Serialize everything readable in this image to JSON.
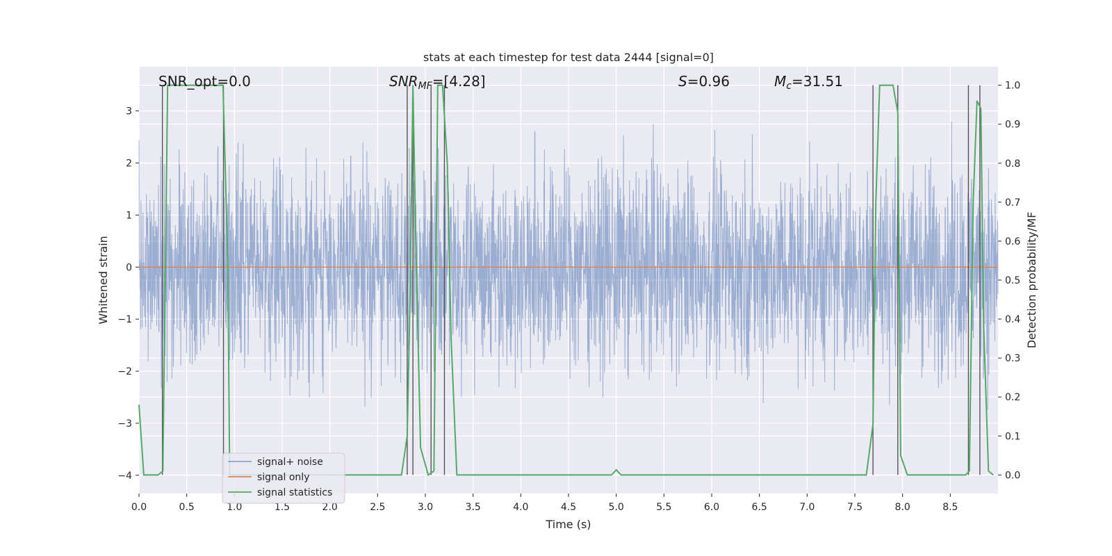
{
  "chart_data": {
    "type": "line",
    "title": "stats at each timestep for test data 2444 [signal=0]",
    "xlabel": "Time (s)",
    "ylabel_left": "Whitened strain",
    "ylabel_right": "Detection probability/MF",
    "xlim": [
      0.0,
      9.0
    ],
    "ylim_left": [
      -4.35,
      3.85
    ],
    "ylim_right": [
      -0.0475,
      1.0475
    ],
    "x_ticks": [
      "0.0",
      "0.5",
      "1.0",
      "1.5",
      "2.0",
      "2.5",
      "3.0",
      "3.5",
      "4.0",
      "4.5",
      "5.0",
      "5.5",
      "6.0",
      "6.5",
      "7.0",
      "7.5",
      "8.0",
      "8.5"
    ],
    "y_ticks_left": [
      "-4",
      "-3",
      "-2",
      "-1",
      "0",
      "1",
      "2",
      "3"
    ],
    "y_ticks_right": [
      "0.0",
      "0.1",
      "0.2",
      "0.3",
      "0.4",
      "0.5",
      "0.6",
      "0.7",
      "0.8",
      "0.9",
      "1.0"
    ],
    "grid": true,
    "legend_position": "lower-left",
    "annotations": {
      "snr_opt": "SNR_opt=0.0",
      "snr_mf_main": "SNR",
      "snr_mf_sub": "MF",
      "snr_mf_value": "=[4.28]",
      "s_label": "S",
      "s_value": "=0.96",
      "mc_main": "M",
      "mc_sub": "c",
      "mc_value": "=31.51"
    },
    "series": [
      {
        "name": "signal+ noise",
        "color": "#4c72b0",
        "axis": "left",
        "description_sampled": "noise envelope",
        "noise_mean": 0.0,
        "noise_range": [
          -3.6,
          3.4
        ]
      },
      {
        "name": "signal only",
        "color": "#dd8452",
        "axis": "left",
        "x": [
          0.0,
          9.0
        ],
        "values": [
          0.0,
          0.0
        ]
      },
      {
        "name": "signal statistics",
        "color": "#55a868",
        "axis": "right",
        "x": [
          0.0,
          0.05,
          0.2,
          0.25,
          0.3,
          0.35,
          0.5,
          0.7,
          0.88,
          0.93,
          0.95,
          1.0,
          1.5,
          2.0,
          2.3,
          2.5,
          2.75,
          2.81,
          2.84,
          2.87,
          2.9,
          2.95,
          3.03,
          3.09,
          3.13,
          3.18,
          3.23,
          3.27,
          3.33,
          3.5,
          4.0,
          4.5,
          4.95,
          5.0,
          5.05,
          5.1,
          5.5,
          6.0,
          7.0,
          7.5,
          7.62,
          7.69,
          7.72,
          7.76,
          7.9,
          7.95,
          7.98,
          8.05,
          8.5,
          8.66,
          8.7,
          8.74,
          8.78,
          8.82,
          8.85,
          8.9,
          8.95
        ],
        "values": [
          0.18,
          0.0,
          0.0,
          0.01,
          1.0,
          1.0,
          1.0,
          1.0,
          1.0,
          0.55,
          0.0,
          0.0,
          0.0,
          0.0,
          0.0,
          0.0,
          0.0,
          0.1,
          0.46,
          1.0,
          0.6,
          0.07,
          0.0,
          0.01,
          1.0,
          1.0,
          0.8,
          0.35,
          0.0,
          0.0,
          0.0,
          0.0,
          0.0,
          0.013,
          0.0,
          0.0,
          0.0,
          0.0,
          0.0,
          0.0,
          0.0,
          0.13,
          0.7,
          1.0,
          1.0,
          0.93,
          0.05,
          0.0,
          0.0,
          0.0,
          0.01,
          0.7,
          0.96,
          0.94,
          0.38,
          0.01,
          0.0
        ]
      }
    ],
    "vertical_lines_x": [
      0.245,
      0.885,
      2.81,
      2.87,
      3.06,
      3.2,
      7.69,
      7.95,
      8.69,
      8.81
    ],
    "vertical_lines_range": [
      0.0,
      1.0
    ],
    "legend_entries": [
      "signal+ noise",
      "signal only",
      "signal statistics"
    ]
  }
}
